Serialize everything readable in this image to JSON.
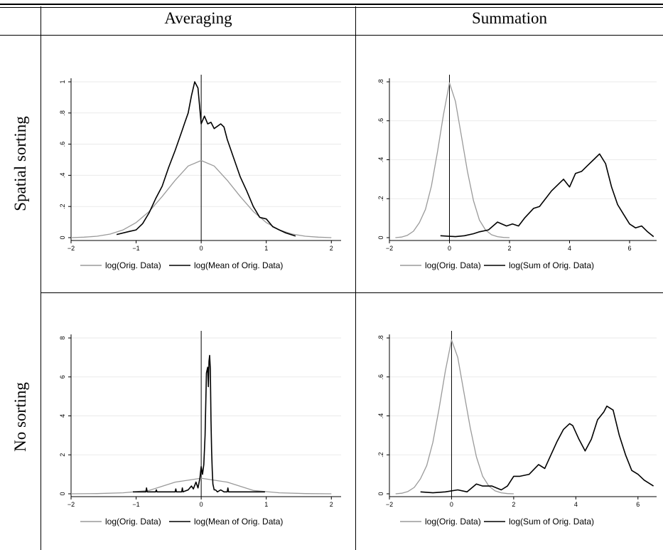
{
  "header": {
    "col_averaging": "Averaging",
    "col_summation": "Summation",
    "row_spatial": "Spatial sorting",
    "row_nosorting": "No sorting"
  },
  "colors": {
    "orig": "#9a9a9a",
    "agg": "#000000"
  },
  "chart_data": [
    {
      "id": "spatial-averaging",
      "type": "line",
      "xlim": [
        -2,
        2.15
      ],
      "ylim": [
        0,
        1.0
      ],
      "xticks": [
        -2,
        -1,
        0,
        1,
        2
      ],
      "xtick_labels": [
        "−2",
        "−1",
        "0",
        "1",
        "2"
      ],
      "yticks": [
        0,
        0.2,
        0.4,
        0.6,
        0.8,
        1
      ],
      "ytick_labels": [
        "0",
        ".2",
        ".4",
        ".6",
        ".8",
        "1"
      ],
      "vline_x": 0,
      "series": [
        {
          "name": "log(Orig. Data)",
          "color": "#9a9a9a",
          "x": [
            -2.0,
            -1.8,
            -1.6,
            -1.4,
            -1.2,
            -1.0,
            -0.8,
            -0.6,
            -0.4,
            -0.2,
            0.0,
            0.2,
            0.4,
            0.6,
            0.8,
            1.0,
            1.2,
            1.4,
            1.6,
            1.8,
            2.0
          ],
          "y": [
            0.0,
            0.003,
            0.009,
            0.023,
            0.05,
            0.097,
            0.168,
            0.264,
            0.368,
            0.46,
            0.495,
            0.46,
            0.368,
            0.264,
            0.168,
            0.097,
            0.05,
            0.023,
            0.009,
            0.003,
            0.0
          ],
          "gaussian_scale": 0.8
        },
        {
          "name": "log(Mean of Orig. Data)",
          "color": "#000000",
          "x": [
            -1.3,
            -1.1,
            -1.0,
            -0.9,
            -0.8,
            -0.7,
            -0.6,
            -0.5,
            -0.4,
            -0.3,
            -0.25,
            -0.2,
            -0.15,
            -0.1,
            -0.05,
            0.0,
            0.05,
            0.1,
            0.15,
            0.2,
            0.3,
            0.35,
            0.4,
            0.5,
            0.6,
            0.7,
            0.8,
            0.9,
            1.0,
            1.1,
            1.2,
            1.3,
            1.45
          ],
          "y": [
            0.02,
            0.04,
            0.05,
            0.09,
            0.16,
            0.25,
            0.33,
            0.45,
            0.56,
            0.68,
            0.74,
            0.8,
            0.91,
            1.0,
            0.96,
            0.73,
            0.78,
            0.73,
            0.74,
            0.7,
            0.73,
            0.71,
            0.63,
            0.51,
            0.39,
            0.3,
            0.2,
            0.13,
            0.12,
            0.07,
            0.05,
            0.03,
            0.01
          ]
        }
      ]
    },
    {
      "id": "spatial-summation",
      "type": "line",
      "xlim": [
        -2,
        6.9
      ],
      "ylim": [
        0,
        0.8
      ],
      "xticks": [
        -2,
        0,
        2,
        4,
        6
      ],
      "xtick_labels": [
        "−2",
        "0",
        "2",
        "4",
        "6"
      ],
      "yticks": [
        0,
        0.2,
        0.4,
        0.6,
        0.8
      ],
      "ytick_labels": [
        "0",
        ".2",
        ".4",
        ".6",
        ".8"
      ],
      "vline_x": 0,
      "series": [
        {
          "name": "log(Orig. Data)",
          "color": "#9a9a9a",
          "x": [
            -1.8,
            -1.6,
            -1.4,
            -1.2,
            -1.0,
            -0.8,
            -0.6,
            -0.4,
            -0.2,
            0.0,
            0.2,
            0.4,
            0.6,
            0.8,
            1.0,
            1.2,
            1.4,
            1.6,
            1.8,
            2.0
          ],
          "y": [
            0.0,
            0.003,
            0.012,
            0.033,
            0.077,
            0.145,
            0.265,
            0.44,
            0.63,
            0.795,
            0.7,
            0.52,
            0.34,
            0.19,
            0.09,
            0.04,
            0.015,
            0.005,
            0.001,
            0.0
          ]
        },
        {
          "name": "log(Sum of Orig. Data)",
          "color": "#000000",
          "x": [
            -0.3,
            0.2,
            0.5,
            0.8,
            1.0,
            1.3,
            1.6,
            1.9,
            2.1,
            2.3,
            2.5,
            2.8,
            3.0,
            3.2,
            3.4,
            3.6,
            3.8,
            4.0,
            4.2,
            4.4,
            4.6,
            4.8,
            5.0,
            5.2,
            5.4,
            5.6,
            5.8,
            6.0,
            6.2,
            6.4,
            6.6,
            6.8
          ],
          "y": [
            0.01,
            0.005,
            0.01,
            0.02,
            0.03,
            0.04,
            0.08,
            0.06,
            0.07,
            0.06,
            0.1,
            0.15,
            0.16,
            0.2,
            0.24,
            0.27,
            0.3,
            0.26,
            0.33,
            0.34,
            0.37,
            0.4,
            0.43,
            0.38,
            0.26,
            0.17,
            0.12,
            0.07,
            0.05,
            0.06,
            0.03,
            0.005
          ]
        }
      ]
    },
    {
      "id": "nosorting-averaging",
      "type": "line",
      "xlim": [
        -2,
        2.15
      ],
      "ylim": [
        0,
        8
      ],
      "xticks": [
        -2,
        -1,
        0,
        1,
        2
      ],
      "xtick_labels": [
        "−2",
        "−1",
        "0",
        "1",
        "2"
      ],
      "yticks": [
        0,
        2,
        4,
        6,
        8
      ],
      "ytick_labels": [
        "0",
        "2",
        "4",
        "6",
        "8"
      ],
      "vline_x": 0,
      "series": [
        {
          "name": "log(Orig. Data)",
          "color": "#9a9a9a",
          "x": [
            -2.0,
            -1.6,
            -1.2,
            -0.8,
            -0.4,
            0.0,
            0.4,
            0.8,
            1.2,
            1.6,
            2.0
          ],
          "y": [
            0.0,
            0.01,
            0.05,
            0.17,
            0.6,
            0.8,
            0.6,
            0.17,
            0.05,
            0.01,
            0.0
          ]
        },
        {
          "name": "log(Mean of Orig. Data)",
          "color": "#000000",
          "x": [
            -1.05,
            -0.85,
            -0.84,
            -0.83,
            -0.7,
            -0.69,
            -0.68,
            -0.4,
            -0.39,
            -0.38,
            -0.3,
            -0.29,
            -0.28,
            -0.2,
            -0.15,
            -0.12,
            -0.08,
            -0.05,
            -0.02,
            0.0,
            0.02,
            0.04,
            0.06,
            0.08,
            0.1,
            0.11,
            0.12,
            0.13,
            0.14,
            0.15,
            0.16,
            0.17,
            0.18,
            0.2,
            0.22,
            0.25,
            0.3,
            0.35,
            0.4,
            0.41,
            0.42,
            0.6,
            0.98
          ],
          "y": [
            0.1,
            0.1,
            0.3,
            0.1,
            0.1,
            0.2,
            0.1,
            0.1,
            0.25,
            0.1,
            0.1,
            0.3,
            0.1,
            0.2,
            0.4,
            0.25,
            0.6,
            0.3,
            0.8,
            1.4,
            1.0,
            1.5,
            3.0,
            6.2,
            6.5,
            5.5,
            6.8,
            7.1,
            6.4,
            3.8,
            2.2,
            1.2,
            0.5,
            0.2,
            0.2,
            0.1,
            0.2,
            0.1,
            0.1,
            0.3,
            0.1,
            0.1,
            0.1
          ]
        }
      ]
    },
    {
      "id": "nosorting-summation",
      "type": "line",
      "xlim": [
        -2,
        6.6
      ],
      "ylim": [
        0,
        0.8
      ],
      "xticks": [
        -2,
        0,
        2,
        4,
        6
      ],
      "xtick_labels": [
        "−2",
        "0",
        "2",
        "4",
        "6"
      ],
      "yticks": [
        0,
        0.2,
        0.4,
        0.6,
        0.8
      ],
      "ytick_labels": [
        "0",
        ".2",
        ".4",
        ".6",
        ".8"
      ],
      "vline_x": 0,
      "series": [
        {
          "name": "log(Orig. Data)",
          "color": "#9a9a9a",
          "x": [
            -1.8,
            -1.6,
            -1.4,
            -1.2,
            -1.0,
            -0.8,
            -0.6,
            -0.4,
            -0.2,
            0.0,
            0.2,
            0.4,
            0.6,
            0.8,
            1.0,
            1.2,
            1.4,
            1.6,
            1.8,
            2.0
          ],
          "y": [
            0.0,
            0.003,
            0.012,
            0.033,
            0.077,
            0.145,
            0.265,
            0.44,
            0.63,
            0.79,
            0.7,
            0.52,
            0.34,
            0.19,
            0.09,
            0.04,
            0.015,
            0.005,
            0.001,
            0.0
          ]
        },
        {
          "name": "log(Sum of Orig. Data)",
          "color": "#000000",
          "x": [
            -1.0,
            -0.6,
            -0.2,
            0.2,
            0.5,
            0.8,
            1.0,
            1.3,
            1.6,
            1.8,
            2.0,
            2.2,
            2.5,
            2.8,
            3.0,
            3.2,
            3.4,
            3.6,
            3.8,
            3.9,
            4.1,
            4.3,
            4.5,
            4.7,
            4.9,
            5.0,
            5.2,
            5.4,
            5.6,
            5.8,
            6.0,
            6.2,
            6.5
          ],
          "y": [
            0.01,
            0.005,
            0.01,
            0.02,
            0.01,
            0.05,
            0.04,
            0.04,
            0.02,
            0.04,
            0.09,
            0.09,
            0.1,
            0.15,
            0.13,
            0.2,
            0.27,
            0.33,
            0.36,
            0.35,
            0.28,
            0.22,
            0.28,
            0.38,
            0.42,
            0.45,
            0.43,
            0.3,
            0.2,
            0.12,
            0.1,
            0.07,
            0.04
          ]
        }
      ]
    }
  ]
}
